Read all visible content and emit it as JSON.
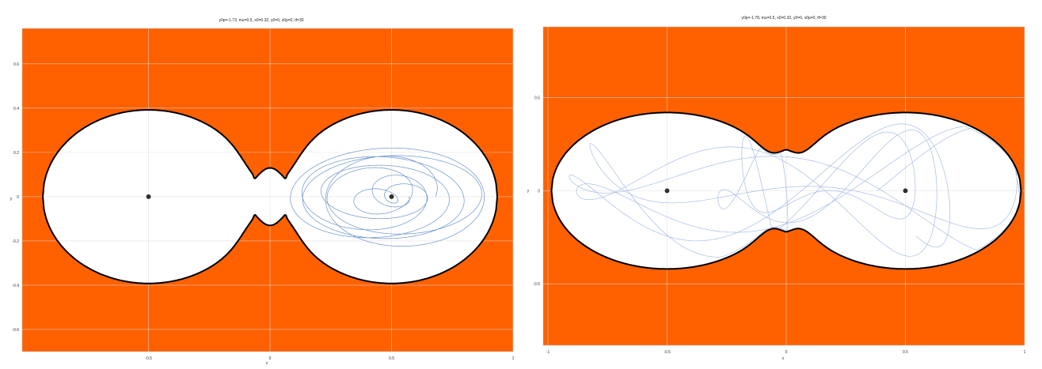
{
  "chart_data": [
    {
      "type": "line",
      "title": "y0p=-1.73, mu=0.5, x0=0.32, y0=0, x0p=0, tf=30",
      "xlabel": "x",
      "ylabel": "y",
      "xlim": [
        -1.02,
        1.0
      ],
      "ylim": [
        -0.7,
        0.76
      ],
      "x_ticks": [
        -0.5,
        0,
        0.5,
        1
      ],
      "x_tick_labels": [
        "-0.5",
        "0",
        "0.5",
        "1"
      ],
      "y_ticks": [
        -0.6,
        -0.4,
        -0.2,
        0,
        0.2,
        0.4,
        0.6
      ],
      "y_tick_labels": [
        "-0.6",
        "-0.4",
        "-0.2",
        "0",
        "0.2",
        "0.4",
        "0.6"
      ],
      "grid": true,
      "forbidden_region_color": "#ff6100",
      "allowed_region_color": "#ffffff",
      "boundary_color": "#000000",
      "trajectory_color": "#5b86c5",
      "boundary": {
        "max_half_width": 0.392,
        "neck_half_width": 0.13,
        "x_extent": [
          -0.935,
          0.935
        ]
      },
      "primaries": [
        {
          "x": -0.5,
          "y": 0
        },
        {
          "x": 0.5,
          "y": 0
        }
      ],
      "trajectory_region": {
        "x_range": [
          0.1,
          0.85
        ],
        "y_range": [
          -0.27,
          0.27
        ]
      }
    },
    {
      "type": "line",
      "title": "y0p=-1.78, mu=0.5, x0=0.32, y0=0, x0p=0, tf=30",
      "xlabel": "x",
      "ylabel": "y",
      "xlim": [
        -1.02,
        1.0
      ],
      "ylim": [
        -0.83,
        0.88
      ],
      "x_ticks": [
        -1,
        -0.5,
        0,
        0.5,
        1
      ],
      "x_tick_labels": [
        "-1",
        "-0.5",
        "0",
        "0.5",
        "1"
      ],
      "y_ticks": [
        -0.5,
        0,
        0.5
      ],
      "y_tick_labels": [
        "-0.5",
        "0",
        "0.5"
      ],
      "grid": true,
      "forbidden_region_color": "#ff6100",
      "allowed_region_color": "#ffffff",
      "boundary_color": "#000000",
      "trajectory_color": "#9fb6df",
      "boundary": {
        "max_half_width": 0.42,
        "neck_half_width": 0.22,
        "x_extent": [
          -0.985,
          0.985
        ]
      },
      "primaries": [
        {
          "x": -0.5,
          "y": 0
        },
        {
          "x": 0.5,
          "y": 0
        }
      ],
      "trajectory_region": {
        "x_range": [
          -0.98,
          0.98
        ],
        "y_range": [
          -0.36,
          0.36
        ]
      }
    }
  ]
}
